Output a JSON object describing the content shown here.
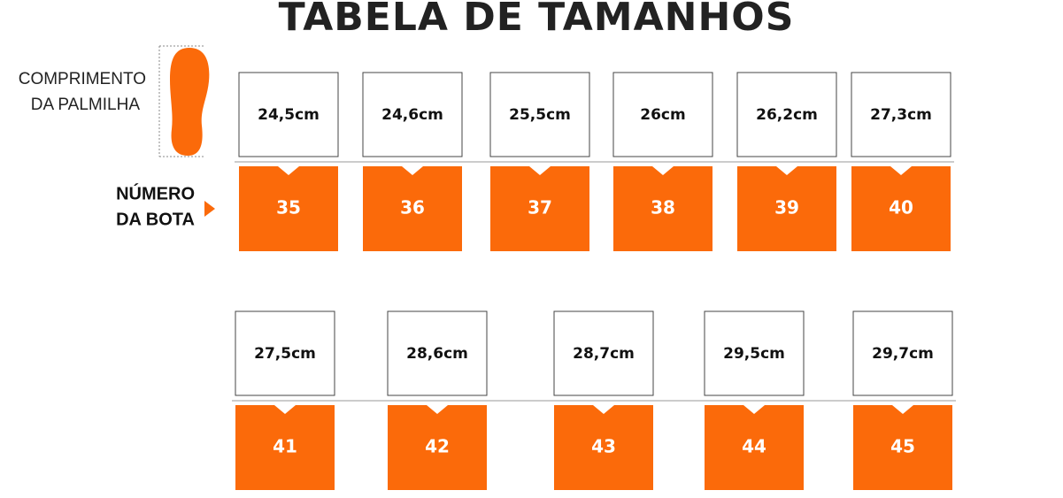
{
  "title": "TABELA DE TAMANHOS",
  "length_label": [
    "COMPRIMENTO",
    "DA PALMILHA"
  ],
  "size_label": [
    "NÚMERO",
    "DA BOTA"
  ],
  "rows": [
    [
      {
        "length": "24,5cm",
        "size": "35"
      },
      {
        "length": "24,6cm",
        "size": "36"
      },
      {
        "length": "25,5cm",
        "size": "37"
      },
      {
        "length": "26cm",
        "size": "38"
      },
      {
        "length": "26,2cm",
        "size": "39"
      },
      {
        "length": "27,3cm",
        "size": "40"
      }
    ],
    [
      {
        "length": "27,5cm",
        "size": "41"
      },
      {
        "length": "28,6cm",
        "size": "42"
      },
      {
        "length": "28,7cm",
        "size": "43"
      },
      {
        "length": "29,5cm",
        "size": "44"
      },
      {
        "length": "29,7cm",
        "size": "45"
      }
    ]
  ]
}
